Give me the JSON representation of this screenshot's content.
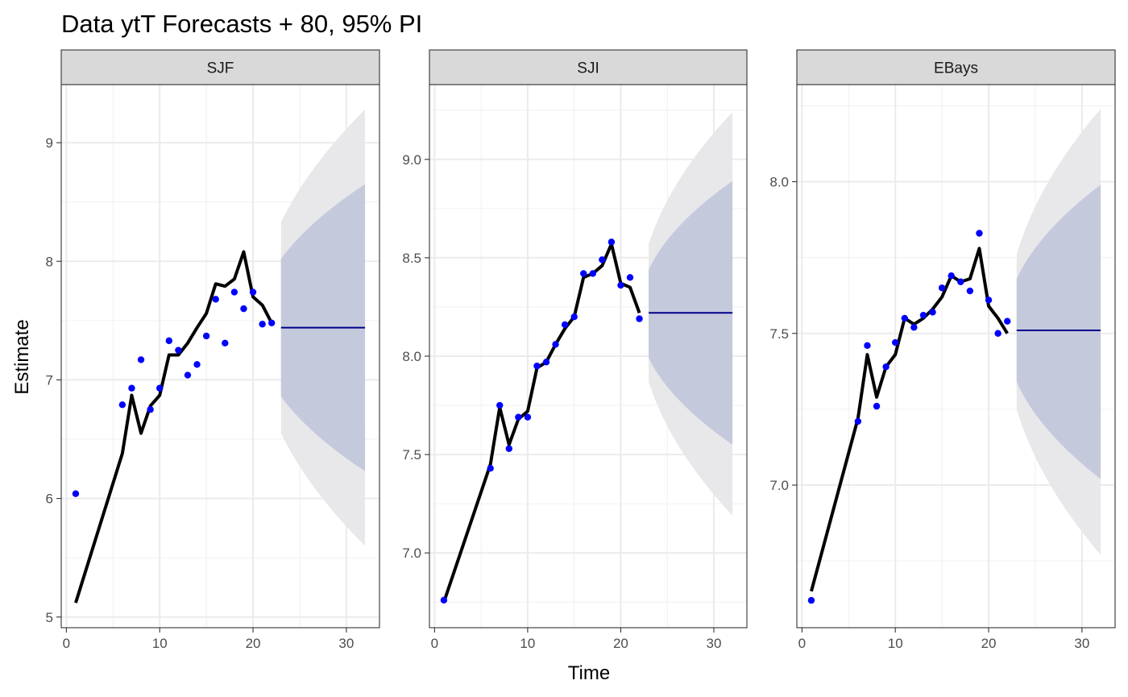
{
  "chart_data": {
    "type": "line",
    "title": "Data ytT Forecasts + 80, 95% PI",
    "xlabel": "Time",
    "ylabel": "Estimate",
    "grid": true,
    "legend": "none",
    "colors": {
      "fitted_line": "#000000",
      "observed_points": "#0000ff",
      "forecast_mean": "#00008b",
      "interval_80": "#c5c9dc",
      "interval_95": "#e8e8eb",
      "strip_fill": "#d9d9d9"
    },
    "panels": [
      {
        "strip": "SJF",
        "xlim": [
          -0.55,
          33.55
        ],
        "ylim": [
          4.91,
          9.49
        ],
        "x_ticks": [
          0,
          10,
          20,
          30
        ],
        "y_ticks": [
          5,
          6,
          7,
          8,
          9
        ],
        "y_tick_labels": [
          "5",
          "6",
          "7",
          "8",
          "9"
        ],
        "fitted": {
          "x": [
            1,
            6,
            7,
            8,
            9,
            10,
            11,
            12,
            13,
            14,
            15,
            16,
            17,
            18,
            19,
            20,
            21,
            22
          ],
          "y": [
            5.12,
            6.38,
            6.87,
            6.55,
            6.78,
            6.87,
            7.21,
            7.21,
            7.31,
            7.44,
            7.56,
            7.81,
            7.79,
            7.85,
            8.08,
            7.7,
            7.63,
            7.48
          ]
        },
        "observed": {
          "x": [
            1,
            6,
            7,
            8,
            9,
            10,
            11,
            12,
            13,
            14,
            15,
            16,
            17,
            18,
            19,
            20,
            21,
            22
          ],
          "y": [
            6.04,
            6.79,
            6.93,
            7.17,
            6.75,
            6.93,
            7.33,
            7.25,
            7.04,
            7.13,
            7.37,
            7.68,
            7.31,
            7.74,
            7.6,
            7.74,
            7.47,
            7.48
          ]
        },
        "forecast": {
          "x": [
            23,
            32
          ],
          "mean": 7.44,
          "lower80": [
            6.86,
            6.23
          ],
          "upper80": [
            8.02,
            8.65
          ],
          "lower95": [
            6.55,
            5.6
          ],
          "upper95": [
            8.33,
            9.28
          ]
        }
      },
      {
        "strip": "SJI",
        "xlim": [
          -0.55,
          33.55
        ],
        "ylim": [
          6.62,
          9.38
        ],
        "x_ticks": [
          0,
          10,
          20,
          30
        ],
        "y_ticks": [
          7.0,
          7.5,
          8.0,
          8.5,
          9.0
        ],
        "y_tick_labels": [
          "7.0",
          "7.5",
          "8.0",
          "8.5",
          "9.0"
        ],
        "fitted": {
          "x": [
            1,
            6,
            7,
            8,
            9,
            10,
            11,
            12,
            13,
            14,
            15,
            16,
            17,
            18,
            19,
            20,
            21,
            22
          ],
          "y": [
            6.75,
            7.45,
            7.74,
            7.55,
            7.68,
            7.72,
            7.94,
            7.97,
            8.06,
            8.14,
            8.2,
            8.4,
            8.42,
            8.46,
            8.57,
            8.37,
            8.35,
            8.22
          ]
        },
        "observed": {
          "x": [
            1,
            6,
            7,
            8,
            9,
            10,
            11,
            12,
            13,
            14,
            15,
            16,
            17,
            18,
            19,
            20,
            21,
            22
          ],
          "y": [
            6.76,
            7.43,
            7.75,
            7.53,
            7.69,
            7.69,
            7.95,
            7.97,
            8.06,
            8.16,
            8.2,
            8.42,
            8.42,
            8.49,
            8.58,
            8.36,
            8.4,
            8.19
          ]
        },
        "forecast": {
          "x": [
            23,
            32
          ],
          "mean": 8.22,
          "lower80": [
            7.99,
            7.55
          ],
          "upper80": [
            8.44,
            8.89
          ],
          "lower95": [
            7.87,
            7.19
          ],
          "upper95": [
            8.57,
            9.24
          ]
        }
      },
      {
        "strip": "EBays",
        "xlim": [
          -0.55,
          33.55
        ],
        "ylim": [
          6.53,
          8.32
        ],
        "x_ticks": [
          0,
          10,
          20,
          30
        ],
        "y_ticks": [
          7.0,
          7.5,
          8.0
        ],
        "y_tick_labels": [
          "7.0",
          "7.5",
          "8.0"
        ],
        "fitted": {
          "x": [
            1,
            6,
            7,
            8,
            9,
            10,
            11,
            12,
            13,
            14,
            15,
            16,
            17,
            18,
            19,
            20,
            21,
            22
          ],
          "y": [
            6.65,
            7.22,
            7.43,
            7.29,
            7.39,
            7.43,
            7.55,
            7.53,
            7.55,
            7.58,
            7.62,
            7.69,
            7.67,
            7.68,
            7.78,
            7.59,
            7.55,
            7.5
          ]
        },
        "observed": {
          "x": [
            1,
            6,
            7,
            8,
            9,
            10,
            11,
            12,
            13,
            14,
            15,
            16,
            17,
            18,
            19,
            20,
            21,
            22
          ],
          "y": [
            6.62,
            7.21,
            7.46,
            7.26,
            7.39,
            7.47,
            7.55,
            7.52,
            7.56,
            7.57,
            7.65,
            7.69,
            7.67,
            7.64,
            7.83,
            7.61,
            7.5,
            7.54
          ]
        },
        "forecast": {
          "x": [
            23,
            32
          ],
          "mean": 7.51,
          "lower80": [
            7.34,
            7.02
          ],
          "upper80": [
            7.68,
            7.99
          ],
          "lower95": [
            7.25,
            6.77
          ],
          "upper95": [
            7.76,
            8.24
          ]
        }
      }
    ]
  }
}
